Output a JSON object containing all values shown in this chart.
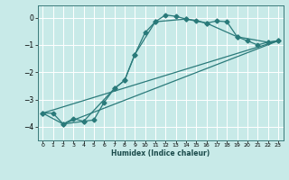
{
  "xlabel": "Humidex (Indice chaleur)",
  "bg_color": "#c8eae8",
  "line_color": "#2a7a7a",
  "grid_color": "#ffffff",
  "xlim": [
    -0.5,
    23.5
  ],
  "ylim": [
    -4.5,
    0.45
  ],
  "yticks": [
    0,
    -1,
    -2,
    -3,
    -4
  ],
  "xticks": [
    0,
    1,
    2,
    3,
    4,
    5,
    6,
    7,
    8,
    9,
    10,
    11,
    12,
    13,
    14,
    15,
    16,
    17,
    18,
    19,
    20,
    21,
    22,
    23
  ],
  "series1": [
    [
      0,
      -3.5
    ],
    [
      1,
      -3.5
    ],
    [
      2,
      -3.9
    ],
    [
      3,
      -3.7
    ],
    [
      4,
      -3.8
    ],
    [
      5,
      -3.75
    ],
    [
      6,
      -3.1
    ],
    [
      7,
      -2.6
    ],
    [
      8,
      -2.3
    ],
    [
      9,
      -1.35
    ],
    [
      10,
      -0.55
    ],
    [
      11,
      -0.15
    ],
    [
      12,
      0.1
    ],
    [
      13,
      0.05
    ],
    [
      14,
      -0.05
    ],
    [
      15,
      -0.1
    ],
    [
      16,
      -0.2
    ],
    [
      17,
      -0.12
    ],
    [
      18,
      -0.15
    ],
    [
      19,
      -0.7
    ],
    [
      20,
      -0.85
    ],
    [
      21,
      -1.0
    ],
    [
      22,
      -0.9
    ],
    [
      23,
      -0.85
    ]
  ],
  "series2": [
    [
      0,
      -3.5
    ],
    [
      2,
      -3.9
    ],
    [
      4,
      -3.8
    ],
    [
      7,
      -2.6
    ],
    [
      8,
      -2.3
    ],
    [
      9,
      -1.35
    ],
    [
      11,
      -0.15
    ],
    [
      14,
      -0.05
    ],
    [
      16,
      -0.2
    ],
    [
      19,
      -0.7
    ],
    [
      22,
      -0.9
    ],
    [
      23,
      -0.85
    ]
  ],
  "series3": [
    [
      0,
      -3.5
    ],
    [
      23,
      -0.85
    ]
  ],
  "series4": [
    [
      2,
      -3.9
    ],
    [
      23,
      -0.85
    ]
  ]
}
